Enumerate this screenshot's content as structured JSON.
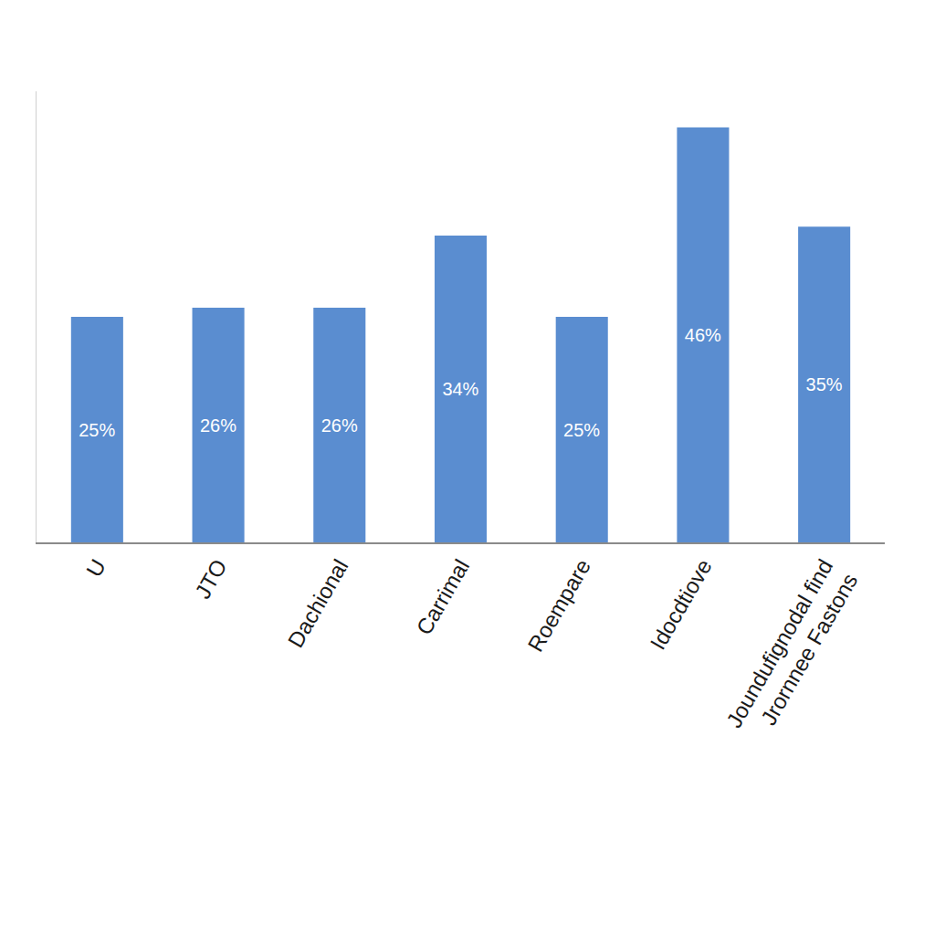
{
  "chart_data": {
    "type": "bar",
    "categories": [
      "U",
      "JTO",
      "Dachional",
      "Carrimal",
      "Roempare",
      "Idocdtiove",
      "Joundufignodal find\nJrornnee Fastons"
    ],
    "values": [
      25,
      26,
      26,
      34,
      25,
      46,
      35
    ],
    "value_labels": [
      "25%",
      "26%",
      "26%",
      "34%",
      "25%",
      "46%",
      "35%"
    ],
    "color": "#5a8dd0",
    "ylim": [
      0,
      50
    ],
    "grid": false,
    "data_labels": true,
    "tick_labels": "x"
  }
}
